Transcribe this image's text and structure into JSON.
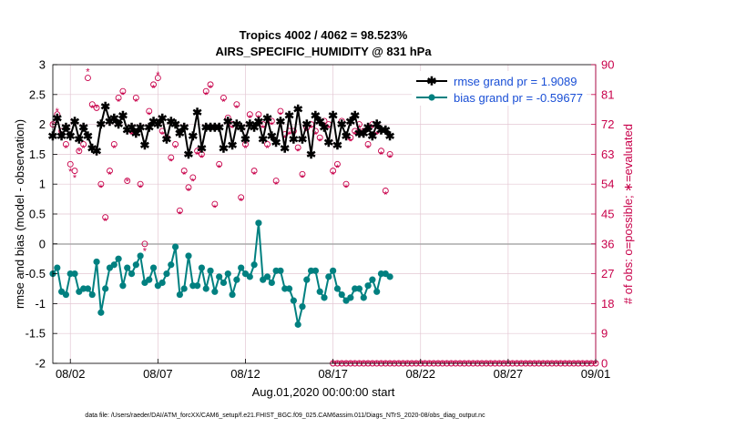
{
  "chart_data": {
    "type": "line",
    "title_line1": "Tropics 4002 / 4062 = 98.523%",
    "title_line2": "AIRS_SPECIFIC_HUMIDITY @ 831 hPa",
    "xlabel": "Aug.01,2020 00:00:00 start",
    "ylabel_left": "rmse and bias (model - observation)",
    "ylabel_right": "# of obs: o=possible; ∗=evaluated",
    "footer": "data file: /Users/raeder/DAI/ATM_forcXX/CAM6_setup/f.e21.FHIST_BGC.f09_025.CAM6assim.011/Diags_NTrS_2020-08/obs_diag_output.nc",
    "x_range_days": [
      0.5,
      31.5
    ],
    "x_ticks": [
      {
        "day": 1.5,
        "label": "08/02"
      },
      {
        "day": 6.5,
        "label": "08/07"
      },
      {
        "day": 11.5,
        "label": "08/12"
      },
      {
        "day": 16.5,
        "label": "08/17"
      },
      {
        "day": 21.5,
        "label": "08/22"
      },
      {
        "day": 26.5,
        "label": "08/27"
      },
      {
        "day": 31.5,
        "label": "09/01"
      }
    ],
    "y_left_range": [
      -2,
      3
    ],
    "y_left_ticks": [
      "-2",
      "-1.5",
      "-1",
      "-0.5",
      "0",
      "0.5",
      "1",
      "1.5",
      "2",
      "2.5",
      "3"
    ],
    "y_right_range": [
      0,
      90
    ],
    "y_right_ticks": [
      "0",
      "9",
      "18",
      "27",
      "36",
      "45",
      "54",
      "63",
      "72",
      "81",
      "90"
    ],
    "x_start_day": 0.5,
    "x_step_days": 0.25,
    "series": [
      {
        "name": "rmse",
        "legend": "rmse grand pr = 1.9089",
        "color": "#000000",
        "values": [
          1.8,
          2.1,
          1.8,
          1.95,
          1.8,
          2.05,
          1.75,
          1.95,
          1.8,
          1.6,
          1.55,
          2.0,
          2.3,
          2.05,
          2.1,
          2.0,
          2.15,
          1.9,
          1.95,
          1.85,
          1.95,
          1.65,
          1.95,
          2.05,
          2.0,
          2.1,
          1.75,
          2.05,
          2.0,
          1.85,
          1.95,
          1.5,
          1.8,
          2.2,
          1.6,
          1.95,
          1.95,
          1.95,
          1.95,
          1.6,
          2.05,
          1.65,
          2.0,
          1.95,
          1.75,
          2.0,
          1.95,
          2.05,
          1.75,
          2.1,
          1.8,
          1.7,
          2.05,
          1.6,
          2.15,
          1.75,
          2.25,
          1.75,
          2.0,
          1.5,
          2.15,
          2.05,
          1.95,
          1.7,
          2.15,
          1.65,
          2.0,
          1.8,
          2.05,
          2.15,
          1.85,
          1.85,
          1.95,
          1.8,
          2.0,
          1.9,
          1.9,
          1.8
        ]
      },
      {
        "name": "bias",
        "legend": "bias grand pr = -0.59677",
        "color": "#008080",
        "values": [
          -0.5,
          -0.4,
          -0.8,
          -0.85,
          -0.5,
          -0.5,
          -0.8,
          -0.75,
          -0.75,
          -0.85,
          -0.3,
          -1.15,
          -0.75,
          -0.4,
          -0.35,
          -0.25,
          -0.7,
          -0.4,
          -0.5,
          -0.35,
          -0.2,
          -0.65,
          -0.6,
          -0.4,
          -0.7,
          -0.65,
          -0.5,
          -0.35,
          -0.05,
          -0.85,
          -0.75,
          -0.2,
          -0.7,
          -0.7,
          -0.4,
          -0.75,
          -0.45,
          -0.8,
          -0.55,
          -0.65,
          -0.5,
          -0.85,
          -0.6,
          -0.4,
          -0.5,
          -0.55,
          -0.35,
          0.35,
          -0.6,
          -0.55,
          -0.65,
          -0.45,
          -0.45,
          -0.75,
          -0.75,
          -0.95,
          -1.35,
          -1.05,
          -0.6,
          -0.45,
          -0.45,
          -0.8,
          -0.9,
          -0.55,
          -0.45,
          -0.75,
          -0.85,
          -0.95,
          -0.9,
          -0.75,
          -0.75,
          -0.9,
          -0.7,
          -0.6,
          -0.8,
          -0.5,
          -0.5,
          -0.55
        ]
      }
    ],
    "obs_count_series": {
      "name": "# of obs",
      "color": "#c8004a",
      "possible_marker": "o",
      "evaluated_marker": "*",
      "possible": [
        72,
        75,
        70,
        66,
        60,
        58,
        64,
        66,
        86,
        78,
        77,
        54,
        44,
        58,
        66,
        80,
        82,
        55,
        70,
        80,
        54,
        36,
        76,
        84,
        86,
        70,
        68,
        62,
        66,
        46,
        58,
        53,
        56,
        64,
        63,
        82,
        84,
        48,
        60,
        80,
        74,
        72,
        78,
        50,
        66,
        75,
        58,
        75,
        72,
        66,
        73,
        55,
        76,
        69,
        70,
        70,
        65,
        57,
        71,
        72,
        70,
        68,
        73,
        72,
        58,
        60,
        73,
        54,
        68,
        70,
        72,
        70,
        66,
        72,
        70,
        64,
        52,
        63
      ],
      "evaluated": [
        72,
        76,
        69,
        65,
        58,
        56,
        64,
        65,
        88,
        77,
        77,
        53,
        43,
        57,
        65,
        79,
        81,
        55,
        69,
        79,
        53,
        34,
        75,
        83,
        87,
        69,
        67,
        61,
        65,
        45,
        57,
        52,
        55,
        63,
        62,
        81,
        83,
        47,
        59,
        79,
        73,
        71,
        77,
        49,
        65,
        74,
        57,
        74,
        71,
        65,
        72,
        54,
        75,
        68,
        69,
        69,
        64,
        56,
        70,
        71,
        69,
        67,
        72,
        71,
        57,
        59,
        72,
        53,
        67,
        69,
        71,
        69,
        65,
        71,
        69,
        63,
        51,
        62
      ],
      "zero_start_day": 16.5,
      "zero_end_day": 31.5
    }
  }
}
